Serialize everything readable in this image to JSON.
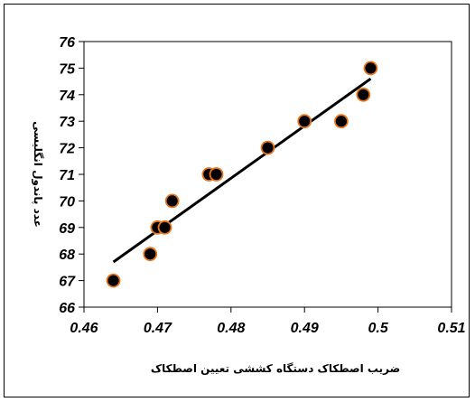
{
  "chart_data": {
    "type": "scatter",
    "xlabel": "ضریب اصطکاک دستگاه کششی تعیین اصطکاک",
    "ylabel": "عدد پاندول انگلیسی",
    "xlim": [
      0.46,
      0.51
    ],
    "ylim": [
      66,
      76
    ],
    "x_ticks": [
      "0.46",
      "0.47",
      "0.48",
      "0.49",
      "0.5",
      "0.51"
    ],
    "y_ticks": [
      "66",
      "67",
      "68",
      "69",
      "70",
      "71",
      "72",
      "73",
      "74",
      "75",
      "76"
    ],
    "grid": false,
    "legend": "none",
    "points": [
      {
        "x": 0.464,
        "y": 67
      },
      {
        "x": 0.469,
        "y": 68
      },
      {
        "x": 0.47,
        "y": 69
      },
      {
        "x": 0.471,
        "y": 69
      },
      {
        "x": 0.472,
        "y": 70
      },
      {
        "x": 0.477,
        "y": 71
      },
      {
        "x": 0.478,
        "y": 71
      },
      {
        "x": 0.485,
        "y": 72
      },
      {
        "x": 0.49,
        "y": 73
      },
      {
        "x": 0.495,
        "y": 73
      },
      {
        "x": 0.498,
        "y": 74
      },
      {
        "x": 0.499,
        "y": 75
      }
    ],
    "trendline": {
      "x": [
        0.464,
        0.499
      ],
      "y": [
        67.7,
        74.6
      ]
    },
    "colors": {
      "marker_fill": "#000000",
      "marker_edge": "#e8771e",
      "line": "#000000"
    }
  }
}
